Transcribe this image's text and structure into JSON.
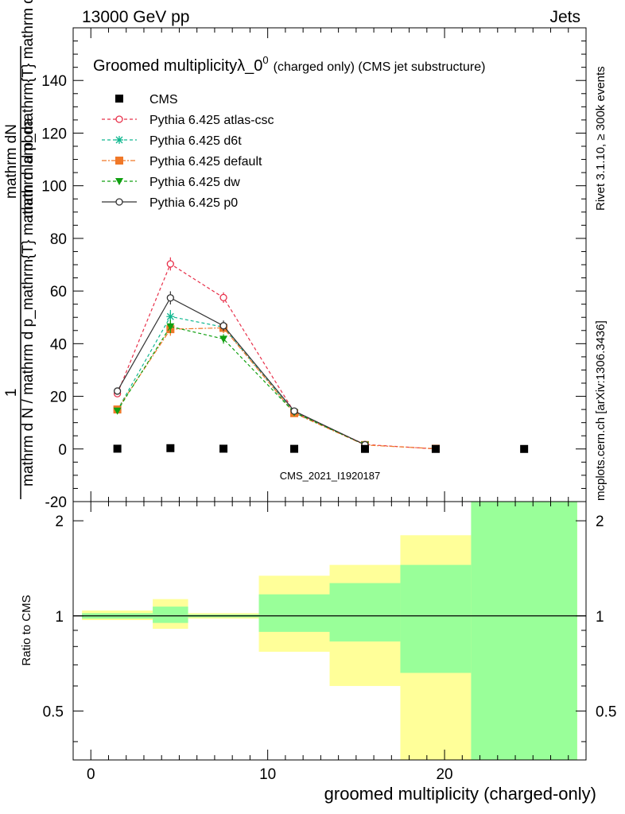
{
  "header": {
    "energy": "13000 GeV pp",
    "category": "Jets"
  },
  "side": {
    "rivet": "Rivet 3.1.10, ≥ 300k events",
    "mcplots": "mcplots.cern.ch [arXiv:1306.3436]"
  },
  "chart_data": [
    {
      "type": "scatter",
      "title_main": "Groomed multiplicity",
      "title_lambda": "λ_0",
      "title_sup": "0",
      "title_suffix": "(charged only) (CMS jet substructure)",
      "ylabel_num_top": "1",
      "ylabel_num_bottom": "mathrm d N / mathrm d p_mathrm{T} mathrm d lambda",
      "ylabel_den": "mathrm dN",
      "ylabel_top": "mathrm d p_mathrm{T} mathrm d lambda",
      "watermark": "CMS_2021_I1920187",
      "ylim": [
        -20,
        160
      ],
      "xlim": [
        -1,
        28
      ],
      "y_ticks": [
        "-20",
        "0",
        "20",
        "40",
        "60",
        "80",
        "100",
        "120",
        "140"
      ],
      "series": [
        {
          "name": "CMS",
          "color": "#000000",
          "marker": "square",
          "x": [
            1.5,
            4.5,
            7.5,
            11.5,
            15.5,
            19.5,
            24.5
          ],
          "y": [
            0.1,
            0.3,
            0.1,
            0.05,
            0.02,
            0.01,
            0.0
          ]
        },
        {
          "name": "Pythia 6.425 atlas-csc",
          "color": "#e8304a",
          "marker": "open-circle",
          "dash": "4,3",
          "x": [
            1.5,
            4.5,
            7.5,
            11.5,
            15.5,
            19.5
          ],
          "y": [
            21.0,
            70.3,
            57.5,
            14.0,
            1.7,
            0.0
          ],
          "err": [
            1.0,
            2.5,
            2.0,
            0.6,
            0.2,
            0.0
          ]
        },
        {
          "name": "Pythia 6.425 d6t",
          "color": "#10b890",
          "marker": "star",
          "dash": "4,3",
          "x": [
            1.5,
            4.5,
            7.5,
            11.5,
            15.5
          ],
          "y": [
            14.8,
            50.3,
            46.3,
            13.8,
            1.6
          ],
          "err": [
            0.8,
            2.5,
            2.0,
            0.6,
            0.2
          ]
        },
        {
          "name": "Pythia 6.425 default",
          "color": "#f07828",
          "marker": "square",
          "dash": "6,2,2,2",
          "x": [
            1.5,
            4.5,
            7.5,
            11.5,
            15.5,
            19.5
          ],
          "y": [
            15.0,
            45.5,
            46.0,
            13.6,
            1.5,
            0.1
          ],
          "err": [
            0.8,
            2.5,
            2.0,
            0.6,
            0.2,
            0.0
          ]
        },
        {
          "name": "Pythia 6.425 dw",
          "color": "#10a010",
          "marker": "down-triangle",
          "dash": "4,3",
          "x": [
            1.5,
            4.5,
            7.5,
            11.5,
            15.5
          ],
          "y": [
            14.5,
            46.5,
            41.8,
            13.9,
            1.6
          ],
          "err": [
            0.8,
            2.5,
            1.8,
            0.6,
            0.2
          ]
        },
        {
          "name": "Pythia 6.425 p0",
          "color": "#333333",
          "marker": "open-circle",
          "dash": "",
          "x": [
            1.5,
            4.5,
            7.5,
            11.5,
            15.5
          ],
          "y": [
            22.0,
            57.4,
            46.8,
            14.4,
            1.6
          ],
          "err": [
            1.0,
            2.5,
            2.0,
            0.6,
            0.2
          ]
        }
      ]
    },
    {
      "type": "area",
      "ylabel": "Ratio to CMS",
      "xlabel": "groomed multiplicity (charged-only)",
      "xlim": [
        -1,
        28
      ],
      "ylim": [
        0.35,
        2.3
      ],
      "x_ticks": [
        "0",
        "10",
        "20"
      ],
      "y_ticks": [
        "0.5",
        "1",
        "2"
      ],
      "bands": [
        {
          "x0": -0.5,
          "x1": 3.5,
          "yellow": [
            0.97,
            1.04
          ],
          "green": [
            0.98,
            1.02
          ]
        },
        {
          "x0": 3.5,
          "x1": 5.5,
          "yellow": [
            0.91,
            1.13
          ],
          "green": [
            0.95,
            1.07
          ]
        },
        {
          "x0": 5.5,
          "x1": 9.5,
          "yellow": [
            0.98,
            1.02
          ],
          "green": [
            0.99,
            1.01
          ]
        },
        {
          "x0": 9.5,
          "x1": 13.5,
          "yellow": [
            0.77,
            1.34
          ],
          "green": [
            0.89,
            1.17
          ]
        },
        {
          "x0": 13.5,
          "x1": 17.5,
          "yellow": [
            0.6,
            1.45
          ],
          "green": [
            0.83,
            1.27
          ]
        },
        {
          "x0": 17.5,
          "x1": 21.5,
          "yellow": [
            0.35,
            1.8
          ],
          "green": [
            0.66,
            1.45
          ]
        },
        {
          "x0": 21.5,
          "x1": 27.5,
          "yellow": [
            0.35,
            2.3
          ],
          "green": [
            0.35,
            2.3
          ]
        }
      ]
    }
  ]
}
